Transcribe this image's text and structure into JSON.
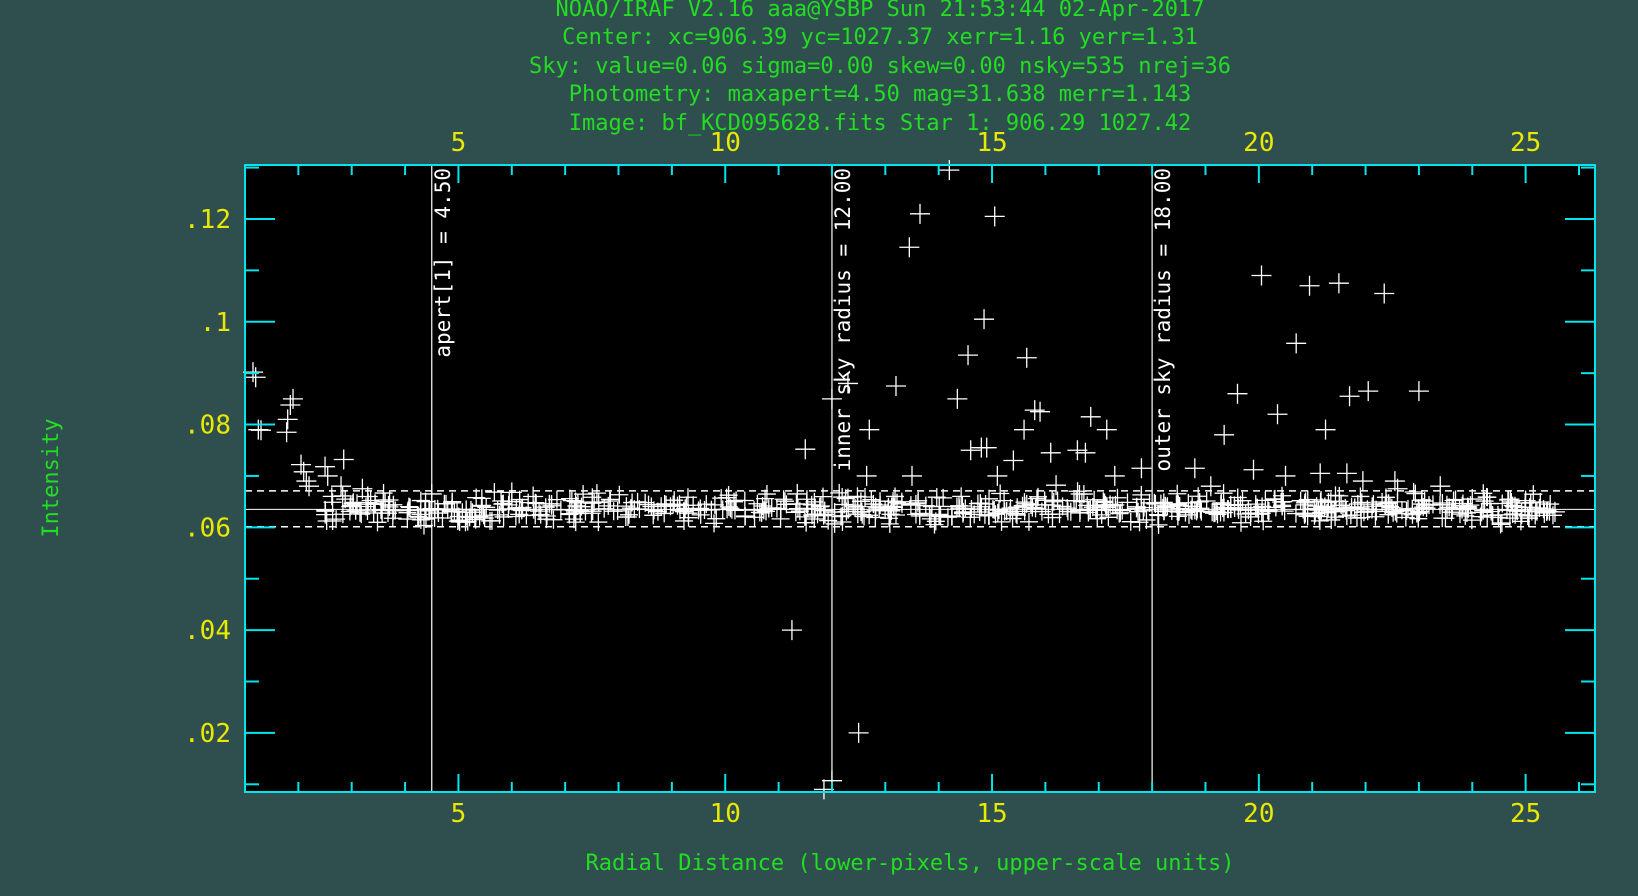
{
  "header": {
    "lines": [
      "NOAO/IRAF V2.16 aaa@YSBP Sun 21:53:44 02-Apr-2017",
      "Center: xc=906.39 yc=1027.37 xerr=1.16 yerr=1.31",
      "Sky: value=0.06 sigma=0.00 skew=0.00 nsky=535 nrej=36",
      "Photometry: maxapert=4.50  mag=31.638  merr=1.143",
      "Image: bf_KCD095628.fits  Star 1:  906.29 1027.42"
    ]
  },
  "colors": {
    "background": "#2f4f4f",
    "frame": "#00e5ee",
    "plot_background": "#000000",
    "tick_labels": "#e8e800",
    "header_text": "#22dd22",
    "data": "#ffffff"
  },
  "chart_data": {
    "type": "scatter",
    "marker": "plus",
    "xlabel": "Radial Distance (lower-pixels, upper-scale units)",
    "ylabel": "Intensity",
    "xlim": [
      1,
      26.3
    ],
    "ylim": [
      0.0085,
      0.1305
    ],
    "x_ticks": [
      5,
      10,
      15,
      20,
      25
    ],
    "x_tick_labels": [
      "5",
      "10",
      "15",
      "20",
      "25"
    ],
    "top_x_ticks": [
      5,
      10,
      15,
      20,
      25
    ],
    "top_x_tick_labels": [
      "5",
      "10",
      "15",
      "20",
      "25"
    ],
    "y_ticks": [
      0.02,
      0.04,
      0.06,
      0.08,
      0.1,
      0.12
    ],
    "y_tick_labels": [
      ".02",
      ".04",
      ".06",
      ".08",
      ".1",
      ".12"
    ],
    "sky_level": 0.0635,
    "sky_bounds": [
      0.0601,
      0.0671
    ],
    "vertical_markers": [
      {
        "x": 4.5,
        "label": "apert[1] = 4.50"
      },
      {
        "x": 12.0,
        "label": "inner sky radius = 12.00"
      },
      {
        "x": 18.0,
        "label": "outer sky radius = 18.00"
      }
    ],
    "points": [
      [
        1.15,
        0.0902
      ],
      [
        1.2,
        0.0892
      ],
      [
        1.25,
        0.079
      ],
      [
        1.3,
        0.0789
      ],
      [
        1.9,
        0.085
      ],
      [
        1.85,
        0.0838
      ],
      [
        1.8,
        0.081
      ],
      [
        1.78,
        0.0785
      ],
      [
        2.05,
        0.0722
      ],
      [
        2.1,
        0.0708
      ],
      [
        2.15,
        0.069
      ],
      [
        2.2,
        0.068
      ],
      [
        2.5,
        0.0718
      ],
      [
        2.55,
        0.07
      ],
      [
        2.85,
        0.0732
      ],
      [
        2.8,
        0.068
      ],
      [
        3.2,
        0.0675
      ],
      [
        3.3,
        0.066
      ],
      [
        3.1,
        0.0645
      ],
      [
        4.5,
        0.0665
      ],
      [
        6.0,
        0.0668
      ],
      [
        6.4,
        0.066
      ],
      [
        11.25,
        0.04
      ],
      [
        11.5,
        0.0752
      ],
      [
        11.35,
        0.0665
      ],
      [
        12.0,
        0.0107
      ],
      [
        11.85,
        0.009
      ],
      [
        12.5,
        0.02
      ],
      [
        12.0,
        0.085
      ],
      [
        12.3,
        0.088
      ],
      [
        12.7,
        0.079
      ],
      [
        12.65,
        0.07
      ],
      [
        13.2,
        0.0875
      ],
      [
        13.5,
        0.07
      ],
      [
        13.45,
        0.1145
      ],
      [
        13.65,
        0.121
      ],
      [
        14.2,
        0.1295
      ],
      [
        14.35,
        0.085
      ],
      [
        14.6,
        0.075
      ],
      [
        14.55,
        0.0935
      ],
      [
        14.8,
        0.0755
      ],
      [
        14.85,
        0.1005
      ],
      [
        14.9,
        0.0755
      ],
      [
        15.05,
        0.1205
      ],
      [
        15.1,
        0.07
      ],
      [
        15.4,
        0.073
      ],
      [
        15.6,
        0.079
      ],
      [
        15.65,
        0.093
      ],
      [
        15.8,
        0.0828
      ],
      [
        15.9,
        0.0825
      ],
      [
        16.1,
        0.0745
      ],
      [
        16.2,
        0.0682
      ],
      [
        16.6,
        0.075
      ],
      [
        16.75,
        0.0745
      ],
      [
        16.85,
        0.0815
      ],
      [
        17.15,
        0.079
      ],
      [
        17.3,
        0.07
      ],
      [
        17.8,
        0.0715
      ],
      [
        18.8,
        0.0715
      ],
      [
        19.1,
        0.068
      ],
      [
        19.35,
        0.078
      ],
      [
        19.6,
        0.086
      ],
      [
        19.9,
        0.0712
      ],
      [
        20.05,
        0.109
      ],
      [
        20.35,
        0.082
      ],
      [
        20.5,
        0.07
      ],
      [
        20.7,
        0.0958
      ],
      [
        20.95,
        0.107
      ],
      [
        21.15,
        0.0705
      ],
      [
        21.25,
        0.079
      ],
      [
        21.5,
        0.1075
      ],
      [
        21.7,
        0.0855
      ],
      [
        21.65,
        0.0705
      ],
      [
        21.95,
        0.069
      ],
      [
        22.05,
        0.0865
      ],
      [
        22.35,
        0.1055
      ],
      [
        22.6,
        0.0675
      ],
      [
        22.55,
        0.069
      ],
      [
        23.0,
        0.0865
      ],
      [
        23.4,
        0.068
      ],
      [
        24.0,
        0.0655
      ],
      [
        24.8,
        0.064
      ],
      [
        25.0,
        0.0652
      ],
      [
        25.35,
        0.0628
      ],
      [
        25.55,
        0.063
      ]
    ],
    "sky_band_points": {
      "x_range": [
        2.5,
        25.6
      ],
      "y_center": 0.0636,
      "y_spread": 0.0025,
      "count": 700
    }
  }
}
